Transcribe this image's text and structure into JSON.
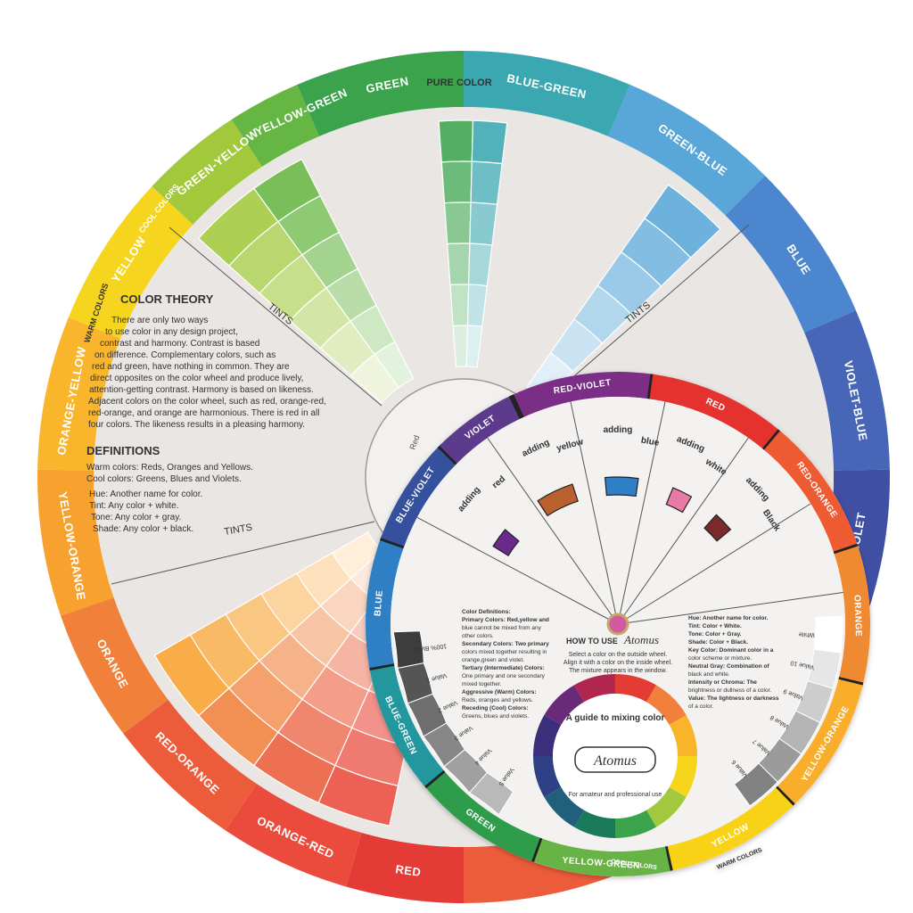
{
  "big_wheel": {
    "pure_color_label": "PURE COLOR",
    "tints_label": "TINTS",
    "segments": [
      {
        "label": "GREEN",
        "color": "#3aa34b"
      },
      {
        "label": "BLUE-GREEN",
        "color": "#3ba7b0"
      },
      {
        "label": "GREEN-BLUE",
        "color": "#58a7d8"
      },
      {
        "label": "BLUE",
        "color": "#4b86cf"
      },
      {
        "label": "VIOLET-BLUE",
        "color": "#4766b8"
      },
      {
        "label": "BLUE-VIOLET",
        "color": "#3f4fa3"
      },
      {
        "label": "RED-ORANGE",
        "color": "#ec5c3b"
      },
      {
        "label": "ORANGE-RED",
        "color": "#ea4b3d"
      },
      {
        "label": "RED",
        "color": "#e53b36"
      },
      {
        "label": "ORANGE",
        "color": "#f0803a"
      },
      {
        "label": "YELLOW-ORANGE",
        "color": "#f7a22f"
      },
      {
        "label": "ORANGE-YELLOW",
        "color": "#f9b52c"
      },
      {
        "label": "YELLOW",
        "color": "#f6d51e"
      },
      {
        "label": "GREEN-YELLOW",
        "color": "#a2c83c"
      },
      {
        "label": "YELLOW-GREEN",
        "color": "#66b643"
      }
    ],
    "warm_colors_tag": "WARM COLORS",
    "cool_colors_tag": "COOL COLORS",
    "theory": {
      "title": "COLOR THEORY",
      "lines": [
        "There are only two ways",
        "to use color in any design project,",
        "contrast and harmony.  Contrast is based",
        "on difference.  Complementary colors, such as",
        "red and green, have nothing in common.  They are",
        "direct opposites on the color wheel and produce lively,",
        "attention-getting contrast.  Harmony is based on likeness.",
        "Adjacent colors on the color wheel, such as red, orange-red,",
        "red-orange, and orange are harmonious.  There is red in all",
        "four colors.  The likeness results in a pleasing harmony."
      ],
      "definitions_title": "DEFINITIONS",
      "warm": "Warm colors: Reds, Oranges and Yellows.",
      "cool": "Cool colors: Greens, Blues and Violets.",
      "hue": "Hue:  Another name for color.",
      "tint": "Tint:  Any color + white.",
      "tone": "Tone:  Any color + gray.",
      "shade": "Shade:  Any color + black."
    },
    "red_label": "Red"
  },
  "small_wheel": {
    "segments": [
      {
        "label": "RED-VIOLET",
        "color": "#7a2d86"
      },
      {
        "label": "RED",
        "color": "#e5322f"
      },
      {
        "label": "RED-ORANGE",
        "color": "#ee5a31"
      },
      {
        "label": "ORANGE",
        "color": "#f08a32"
      },
      {
        "label": "YELLOW-ORANGE",
        "color": "#f8ae2c"
      },
      {
        "label": "YELLOW",
        "color": "#f7d219"
      },
      {
        "label": "YELLOW-GREEN",
        "color": "#67b344"
      },
      {
        "label": "GREEN",
        "color": "#2f9c4b"
      },
      {
        "label": "BLUE-GREEN",
        "color": "#22979d"
      },
      {
        "label": "BLUE",
        "color": "#2e7fc4"
      },
      {
        "label": "BLUE-VIOLET",
        "color": "#34519e"
      },
      {
        "label": "VIOLET",
        "color": "#5b3a8d"
      }
    ],
    "adding": [
      "adding",
      "adding",
      "adding",
      "adding",
      "adding"
    ],
    "adding_words": [
      "red",
      "yellow",
      "blue",
      "white",
      "Black"
    ],
    "gray_scale_left": "Gray Scale",
    "gray_scale_right": "Gray Scale",
    "value_labels_left": [
      "100% Black",
      "Value 1",
      "Value 2",
      "Value 3",
      "Value 4",
      "Value 5"
    ],
    "value_labels_right": [
      "White",
      "Value 10",
      "Value 9",
      "Value 8",
      "Value 7",
      "Value 6"
    ],
    "warm_tag": "WARM COLORS",
    "cool_tag": "COOL COLORS",
    "how_to_use": "HOW TO USE",
    "brand": "Atomus",
    "instructions": [
      "Select a color on the outside wheel.",
      "Align it with a color on the inside wheel.",
      "The mixture appears in the window."
    ],
    "definitions_left": [
      "Color Definitions:",
      "Primary Colors: Red,yellow and",
      "blue cannot be mixed from any",
      "other colors.",
      "Secondary Colors: Two primary",
      "colors mixed together resulting in",
      "orange,green and violet.",
      "Tertiary (Intermediate) Colors:",
      "One primary and one secondary",
      "mixed together.",
      "Aggressive (Warm) Colors:",
      "Reds, oranges and yellows.",
      "Receding (Cool) Colors:",
      "Greens, blues and violets."
    ],
    "definitions_right": [
      "Hue: Another name for color.",
      "Tint: Color + White.",
      "Tone: Color + Gray.",
      "Shade: Color + Black.",
      "Key Color: Dominant color in a",
      "color scheme or mixture.",
      "Neutral Gray: Combination of",
      "black and white.",
      "Intensity or Chroma: The",
      "brightness or dullness of a color.",
      "Value: The lightness or darkness",
      "of a color."
    ],
    "guide_title": "A guide to mixing color",
    "guide_sub": "For amateur and professional use",
    "inner_ring_colors": [
      "#e53b36",
      "#f0803a",
      "#f9b52c",
      "#f6d51e",
      "#a2c83c",
      "#3aa34b",
      "#1f7a5c",
      "#245f7d",
      "#2d3f86",
      "#3b2f7a",
      "#6a2a7a",
      "#b0264f"
    ]
  }
}
